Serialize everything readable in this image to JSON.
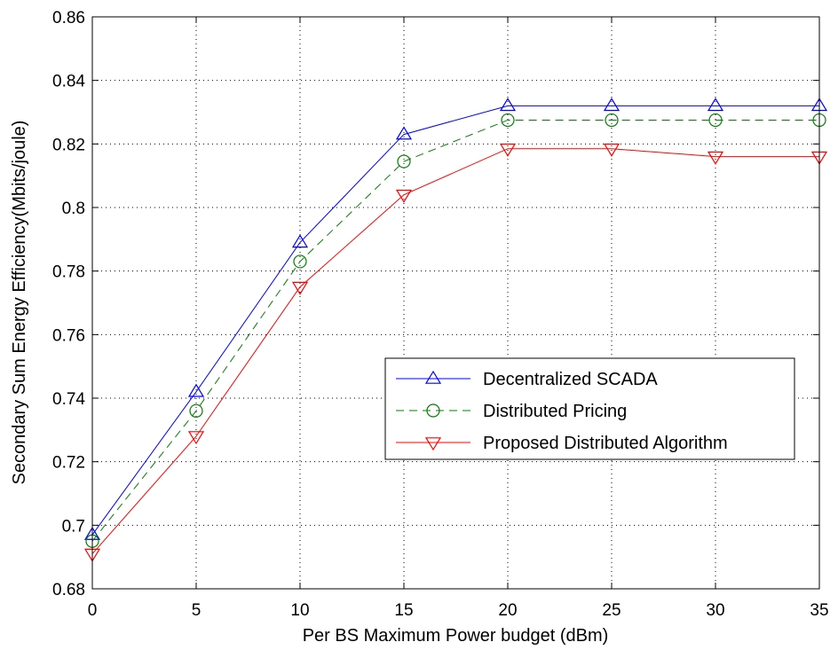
{
  "chart_data": {
    "type": "line",
    "title": "",
    "xlabel": "Per BS Maximum Power budget (dBm)",
    "ylabel": "Secondary Sum Energy Efficiency(Mbits/joule)",
    "xlim": [
      0,
      35
    ],
    "ylim": [
      0.68,
      0.86
    ],
    "xticks": [
      "0",
      "5",
      "10",
      "15",
      "20",
      "25",
      "30",
      "35"
    ],
    "yticks": [
      "0.68",
      "0.7",
      "0.72",
      "0.74",
      "0.76",
      "0.78",
      "0.8",
      "0.82",
      "0.84",
      "0.86"
    ],
    "grid": true,
    "legend_position": "center-right",
    "x": [
      0,
      5,
      10,
      15,
      20,
      25,
      30,
      35
    ],
    "series": [
      {
        "name": "Decentralized SCADA",
        "values": [
          0.697,
          0.742,
          0.789,
          0.823,
          0.832,
          0.832,
          0.832,
          0.832
        ],
        "color": "#0000ff",
        "dash": "solid",
        "marker": "triangle-up"
      },
      {
        "name": "Distributed Pricing",
        "values": [
          0.695,
          0.736,
          0.783,
          0.8145,
          0.8275,
          0.8275,
          0.8275,
          0.8275
        ],
        "color": "#008000",
        "dash": "dashed",
        "marker": "circle"
      },
      {
        "name": "Proposed Distributed Algorithm",
        "values": [
          0.691,
          0.728,
          0.775,
          0.804,
          0.8185,
          0.8185,
          0.816,
          0.816
        ],
        "color": "#ff0000",
        "dash": "solid",
        "marker": "triangle-down"
      }
    ]
  }
}
